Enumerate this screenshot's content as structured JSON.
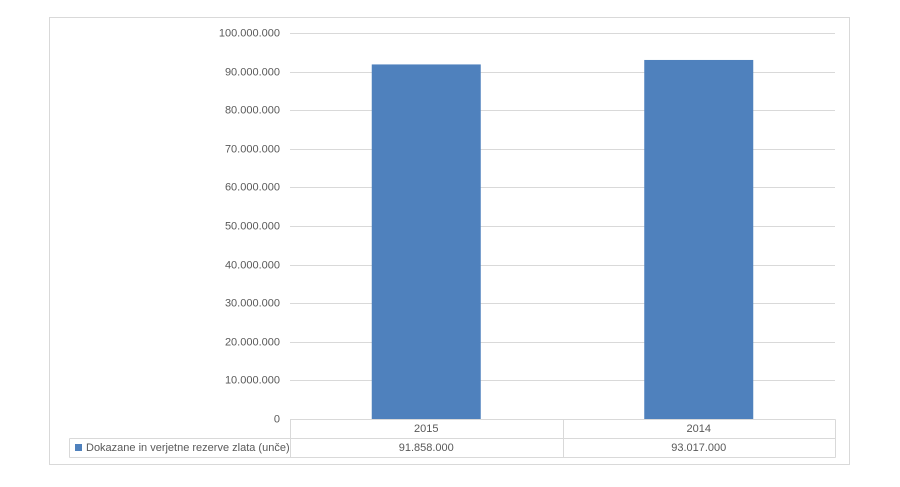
{
  "chart_data": {
    "type": "bar",
    "categories": [
      "2015",
      "2014"
    ],
    "series": [
      {
        "name": "Dokazane in verjetne rezerve zlata (unče)",
        "color": "#4f81bd",
        "values": [
          91858000,
          93017000
        ],
        "value_labels": [
          "91.858.000",
          "93.017.000"
        ]
      }
    ],
    "ylim": [
      0,
      100000000
    ],
    "yticks": [
      0,
      {
        "value": 10000000,
        "label": "10.000.000"
      },
      {
        "value": 20000000,
        "label": "20.000.000"
      },
      {
        "value": 30000000,
        "label": "30.000.000"
      },
      {
        "value": 40000000,
        "label": "40.000.000"
      },
      {
        "value": 50000000,
        "label": "50.000.000"
      },
      {
        "value": 60000000,
        "label": "60.000.000"
      },
      {
        "value": 70000000,
        "label": "70.000.000"
      },
      {
        "value": 80000000,
        "label": "80.000.000"
      },
      {
        "value": 90000000,
        "label": "90.000.000"
      },
      {
        "value": 100000000,
        "label": "100.000.000"
      }
    ],
    "grid": true,
    "data_table": true
  }
}
